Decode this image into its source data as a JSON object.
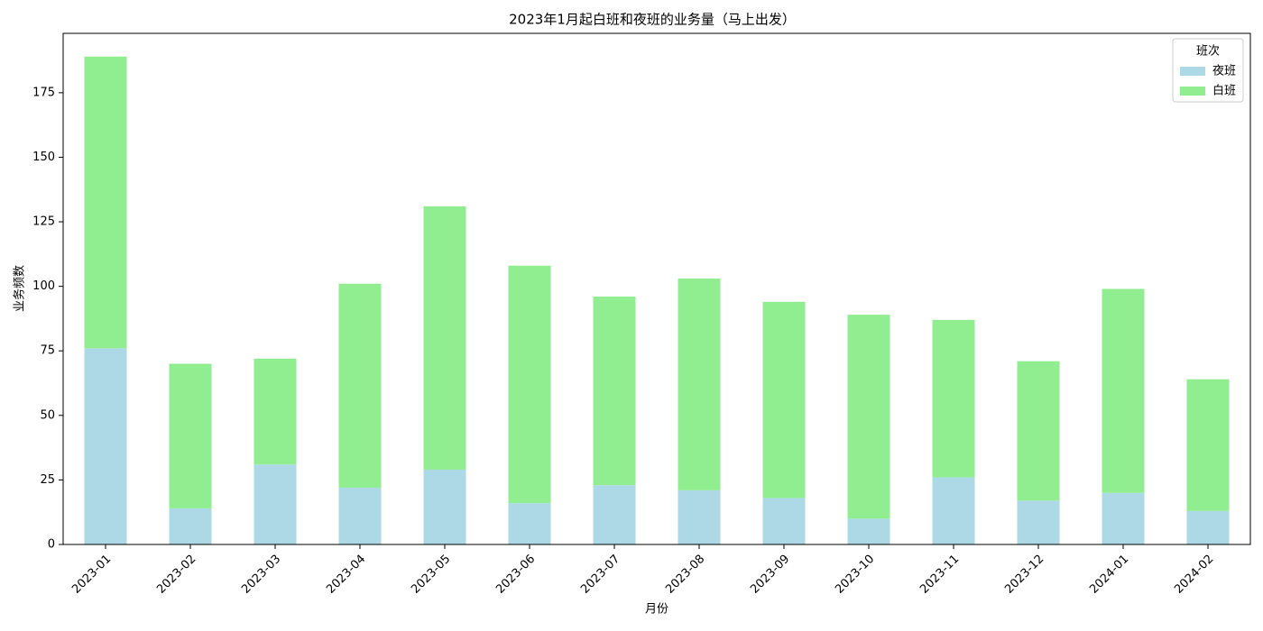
{
  "chart_data": {
    "type": "stacked_bar",
    "title": "2023年1月起白班和夜班的业务量（马上出发）",
    "xlabel": "月份",
    "ylabel": "业务频数",
    "legend_title": "班次",
    "legend_position": "upper right",
    "categories": [
      "2023-01",
      "2023-02",
      "2023-03",
      "2023-04",
      "2023-05",
      "2023-06",
      "2023-07",
      "2023-08",
      "2023-09",
      "2023-10",
      "2023-11",
      "2023-12",
      "2024-01",
      "2024-02"
    ],
    "series": [
      {
        "name": "夜班",
        "color": "#add8e6",
        "values": [
          76,
          14,
          31,
          22,
          29,
          16,
          23,
          21,
          18,
          10,
          26,
          17,
          20,
          13
        ]
      },
      {
        "name": "白班",
        "color": "#90ee90",
        "values": [
          113,
          56,
          41,
          79,
          102,
          92,
          73,
          82,
          76,
          79,
          61,
          54,
          79,
          51
        ]
      }
    ],
    "ylim": [
      0,
      198
    ],
    "yticks": [
      0,
      25,
      50,
      75,
      100,
      125,
      150,
      175
    ]
  }
}
